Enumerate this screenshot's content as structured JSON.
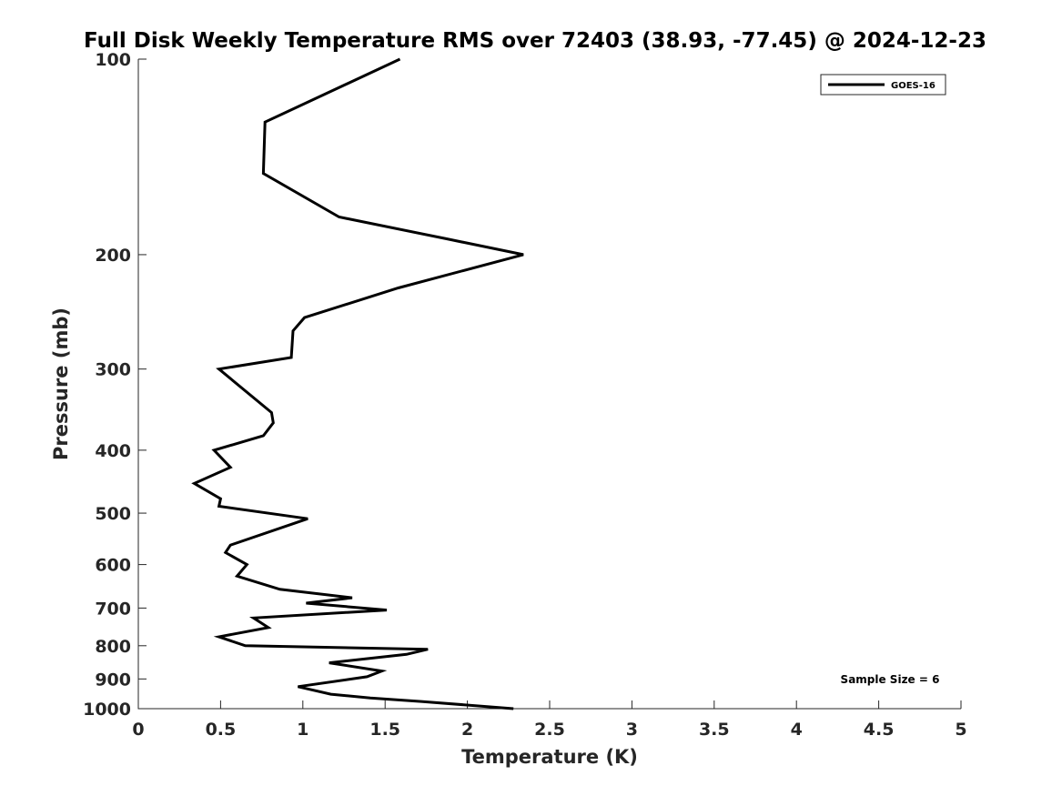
{
  "chart_data": {
    "type": "line",
    "title": "Full Disk Weekly Temperature RMS over 72403 (38.93, -77.45) @ 2024-12-23",
    "xlabel": "Temperature (K)",
    "ylabel": "Pressure (mb)",
    "xlim": [
      0,
      5
    ],
    "ylim": [
      100,
      1000
    ],
    "y_scale": "log",
    "y_reversed": true,
    "grid": false,
    "x_ticks": [
      "0",
      "0.5",
      "1",
      "1.5",
      "2",
      "2.5",
      "3",
      "3.5",
      "4",
      "4.5",
      "5"
    ],
    "y_ticks": [
      "100",
      "200",
      "300",
      "400",
      "500",
      "600",
      "700",
      "800",
      "900",
      "1000"
    ],
    "legend": {
      "position": "top-right",
      "entries": [
        "GOES-16"
      ]
    },
    "annotation": "Sample Size = 6",
    "series": [
      {
        "name": "GOES-16",
        "color": "#000000",
        "points": [
          [
            1.59,
            100
          ],
          [
            0.77,
            125
          ],
          [
            0.76,
            150
          ],
          [
            1.22,
            175
          ],
          [
            1.87,
            189
          ],
          [
            2.34,
            200
          ],
          [
            1.58,
            225
          ],
          [
            1.01,
            250
          ],
          [
            0.94,
            262
          ],
          [
            0.93,
            288
          ],
          [
            0.49,
            300
          ],
          [
            0.81,
            350
          ],
          [
            0.82,
            363
          ],
          [
            0.76,
            380
          ],
          [
            0.46,
            400
          ],
          [
            0.56,
            425
          ],
          [
            0.34,
            450
          ],
          [
            0.5,
            475
          ],
          [
            0.49,
            488
          ],
          [
            1.03,
            510
          ],
          [
            0.56,
            560
          ],
          [
            0.53,
            575
          ],
          [
            0.66,
            600
          ],
          [
            0.6,
            625
          ],
          [
            0.86,
            655
          ],
          [
            1.3,
            675
          ],
          [
            1.02,
            688
          ],
          [
            1.51,
            705
          ],
          [
            0.7,
            725
          ],
          [
            0.79,
            750
          ],
          [
            0.49,
            775
          ],
          [
            0.65,
            800
          ],
          [
            1.76,
            810
          ],
          [
            1.63,
            825
          ],
          [
            1.16,
            850
          ],
          [
            1.48,
            875
          ],
          [
            1.39,
            893
          ],
          [
            0.97,
            925
          ],
          [
            1.17,
            950
          ],
          [
            1.41,
            963
          ],
          [
            1.72,
            975
          ],
          [
            2.28,
            1000
          ]
        ]
      }
    ]
  }
}
